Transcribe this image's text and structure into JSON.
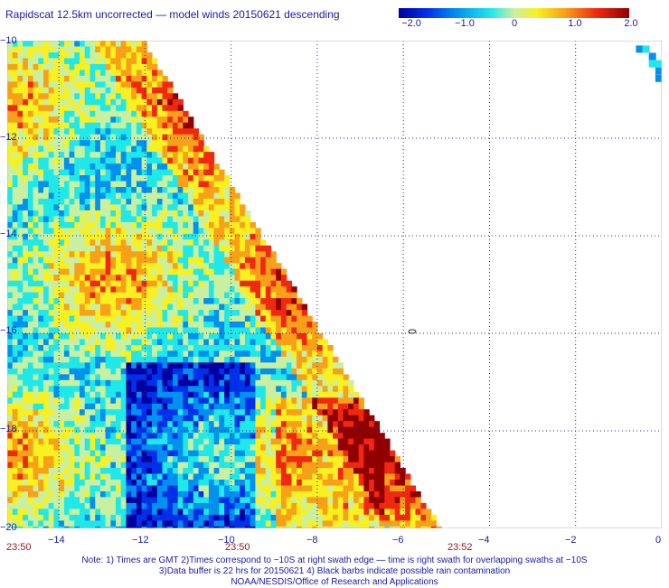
{
  "title": "Rapidscat 12.5km uncorrected — model winds 20150621 descending",
  "colorbar": {
    "ticks": [
      "−2.0",
      "−1.0",
      "0",
      "1.0",
      "2.0"
    ],
    "range": [
      -2.0,
      2.0
    ],
    "colors": [
      "#0000a0",
      "#0030e8",
      "#0090f0",
      "#20e8e8",
      "#c8f0a0",
      "#f8f020",
      "#f8a018",
      "#f02810",
      "#900000"
    ]
  },
  "chart_data": {
    "type": "heatmap",
    "x_ticks": [
      "−14",
      "−12",
      "−10",
      "−8",
      "−6",
      "−4",
      "−2",
      "0"
    ],
    "y_ticks": [
      "−10",
      "−12",
      "−14",
      "−16",
      "−18",
      "−20"
    ],
    "x_range": [
      -15.2,
      0
    ],
    "y_range": [
      -20,
      -10
    ],
    "grid": true,
    "value_range": [
      -2.0,
      2.0
    ],
    "swath_edge_longitude_at_lat": [
      [
        -10,
        -12.1
      ],
      [
        -20,
        -5.2
      ]
    ]
  },
  "time_labels": [
    "23:50",
    "23:50",
    "23:52"
  ],
  "notes": [
    "Note: 1) Times are GMT 2)Times correspond to −10S at right swath edge — time is right swath for overlapping swaths at −10S",
    "3)Data buffer is 22 hrs for 20150621 4) Black barbs indicate possible rain contamination",
    "NOAA/NESDIS/Office of Research and Applications"
  ]
}
